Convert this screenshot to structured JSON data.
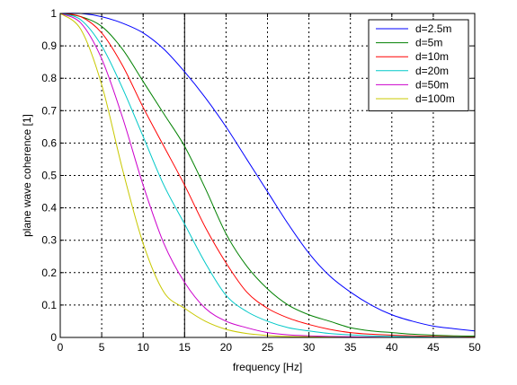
{
  "chart_data": {
    "type": "line",
    "title": "",
    "xlabel": "frequency [Hz]",
    "ylabel": "plane wave coherence [1]",
    "xlim": [
      0,
      50
    ],
    "ylim": [
      0,
      1
    ],
    "xticks": [
      0,
      5,
      10,
      15,
      20,
      25,
      30,
      35,
      40,
      45,
      50
    ],
    "yticks": [
      0,
      0.1,
      0.2,
      0.3,
      0.4,
      0.5,
      0.6,
      0.7,
      0.8,
      0.9,
      1
    ],
    "xtick_labels": [
      "0",
      "5",
      "10",
      "15",
      "20",
      "25",
      "30",
      "35",
      "40",
      "45",
      "50"
    ],
    "ytick_labels": [
      "0",
      "0.1",
      "0.2",
      "0.3",
      "0.4",
      "0.5",
      "0.6",
      "0.7",
      "0.8",
      "0.9",
      "1"
    ],
    "grid": true,
    "grid_style": "dotted",
    "legend_position": "top-right",
    "reference_line": {
      "x": 15
    },
    "x": [
      0,
      2.5,
      5,
      7.5,
      10,
      12.5,
      15,
      17.5,
      20,
      22.5,
      25,
      27.5,
      30,
      32.5,
      35,
      37.5,
      40,
      42.5,
      45,
      47.5,
      50
    ],
    "series": [
      {
        "name": "d=2.5m",
        "color": "#0000ff",
        "values": [
          1.0,
          1.0,
          0.99,
          0.97,
          0.94,
          0.89,
          0.82,
          0.74,
          0.65,
          0.55,
          0.45,
          0.35,
          0.26,
          0.19,
          0.14,
          0.1,
          0.07,
          0.05,
          0.035,
          0.027,
          0.02
        ]
      },
      {
        "name": "d=5m",
        "color": "#008000",
        "values": [
          1.0,
          0.99,
          0.96,
          0.89,
          0.79,
          0.69,
          0.59,
          0.46,
          0.32,
          0.22,
          0.15,
          0.1,
          0.07,
          0.05,
          0.03,
          0.02,
          0.015,
          0.01,
          0.007,
          0.005,
          0.004
        ]
      },
      {
        "name": "d=10m",
        "color": "#ff0000",
        "values": [
          1.0,
          0.99,
          0.94,
          0.84,
          0.71,
          0.59,
          0.47,
          0.34,
          0.23,
          0.14,
          0.09,
          0.06,
          0.04,
          0.025,
          0.015,
          0.01,
          0.007,
          0.005,
          0.003,
          0.002,
          0.001
        ]
      },
      {
        "name": "d=20m",
        "color": "#00c8c8",
        "values": [
          1.0,
          0.98,
          0.9,
          0.77,
          0.62,
          0.47,
          0.35,
          0.23,
          0.13,
          0.08,
          0.05,
          0.03,
          0.02,
          0.012,
          0.008,
          0.005,
          0.003,
          0.002,
          0.001,
          0.001,
          0.0
        ]
      },
      {
        "name": "d=50m",
        "color": "#cc00cc",
        "values": [
          1.0,
          0.97,
          0.86,
          0.68,
          0.47,
          0.29,
          0.17,
          0.09,
          0.05,
          0.03,
          0.015,
          0.008,
          0.005,
          0.003,
          0.002,
          0.001,
          0.0,
          0.0,
          0.0,
          0.0,
          0.0
        ]
      },
      {
        "name": "d=100m",
        "color": "#c8c800",
        "values": [
          1.0,
          0.95,
          0.78,
          0.52,
          0.29,
          0.14,
          0.09,
          0.05,
          0.025,
          0.012,
          0.006,
          0.003,
          0.002,
          0.001,
          0.0,
          0.0,
          0.0,
          0.0,
          0.0,
          0.0,
          0.0
        ]
      }
    ]
  }
}
